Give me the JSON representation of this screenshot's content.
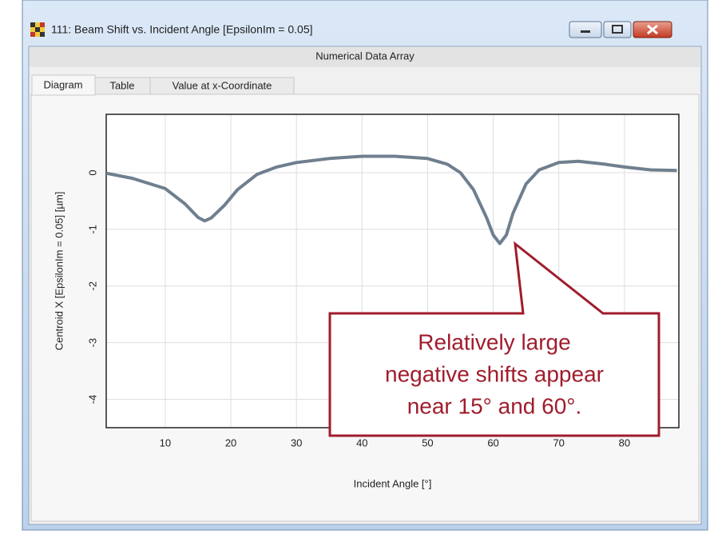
{
  "window": {
    "title": "111: Beam Shift vs. Incident Angle [EpsilonIm = 0.05]",
    "header": "Numerical Data Array",
    "tabs": [
      "Diagram",
      "Table",
      "Value at x-Coordinate"
    ]
  },
  "chart_data": {
    "type": "line",
    "x": [
      1,
      5,
      10,
      13,
      15,
      16,
      17,
      19,
      21,
      24,
      27,
      30,
      35,
      40,
      45,
      50,
      53,
      55,
      57,
      59,
      60,
      61,
      62,
      63,
      65,
      67,
      70,
      73,
      77,
      80,
      84,
      88
    ],
    "values": [
      -0.01,
      -0.1,
      -0.28,
      -0.55,
      -0.79,
      -0.85,
      -0.8,
      -0.58,
      -0.3,
      -0.03,
      0.1,
      0.18,
      0.25,
      0.29,
      0.29,
      0.25,
      0.15,
      0.0,
      -0.3,
      -0.8,
      -1.1,
      -1.25,
      -1.1,
      -0.72,
      -0.2,
      0.05,
      0.18,
      0.2,
      0.15,
      0.1,
      0.05,
      0.04
    ],
    "color": "#6f7f8f",
    "xlabel": "Incident Angle [°]",
    "ylabel": "Centroid X [EpsilonIm = 0.05] [µm]",
    "xlim": [
      1,
      88.3
    ],
    "ylim": [
      -4.5,
      1.03
    ],
    "xticks": [
      10,
      20,
      30,
      40,
      50,
      60,
      70,
      80
    ],
    "yticks": [
      0,
      -1,
      -2,
      -3,
      -4
    ],
    "grid": true
  },
  "callout": {
    "lines": [
      "Relatively large",
      "negative shifts appear",
      "near 15° and 60°."
    ]
  }
}
